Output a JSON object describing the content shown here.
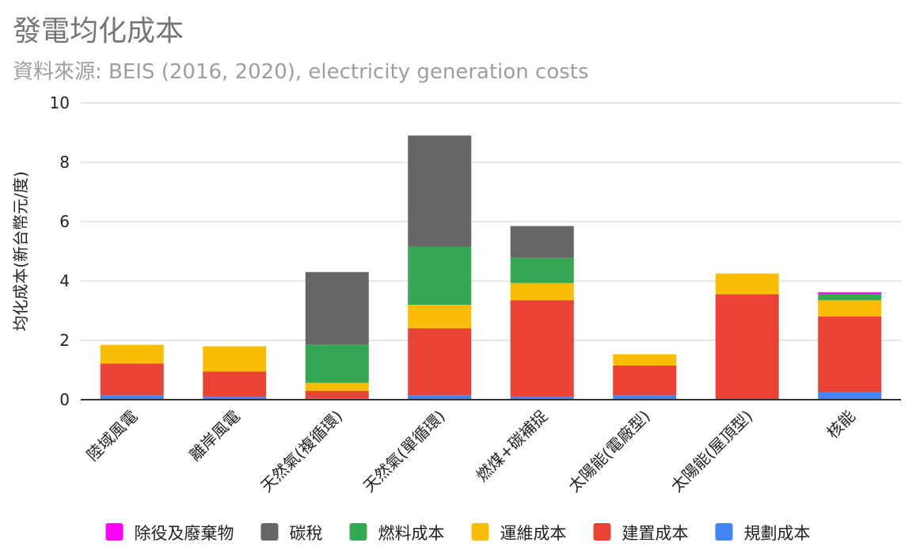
{
  "chart_data": {
    "type": "bar",
    "stacked": true,
    "title": "發電均化成本",
    "subtitle": "資料來源: BEIS (2016, 2020), electricity generation costs",
    "xlabel": "",
    "ylabel": "均化成本(新台幣元/度)",
    "ylim": [
      0,
      10
    ],
    "yticks": [
      "0",
      "2",
      "4",
      "6",
      "8",
      "10"
    ],
    "grid": true,
    "legend_position": "bottom",
    "categories": [
      "陸域風電",
      "離岸風電",
      "天然氣(複循環)",
      "天然氣(單循環)",
      "燃煤+碳補捉",
      "太陽能(電廠型)",
      "太陽能(屋頂型)",
      "核能"
    ],
    "series": [
      {
        "name": "規劃成本",
        "color": "#4285f4",
        "values": [
          0.15,
          0.1,
          0.05,
          0.15,
          0.1,
          0.15,
          0.0,
          0.25
        ]
      },
      {
        "name": "建置成本",
        "color": "#ea4335",
        "values": [
          1.07,
          0.85,
          0.25,
          2.25,
          3.25,
          1.0,
          3.55,
          2.55
        ]
      },
      {
        "name": "運維成本",
        "color": "#fbbc04",
        "values": [
          0.63,
          0.85,
          0.27,
          0.8,
          0.58,
          0.38,
          0.7,
          0.55
        ]
      },
      {
        "name": "燃料成本",
        "color": "#34a853",
        "values": [
          0.0,
          0.0,
          1.28,
          1.95,
          0.85,
          0.0,
          0.0,
          0.2
        ]
      },
      {
        "name": "碳稅",
        "color": "#666666",
        "values": [
          0.0,
          0.0,
          2.45,
          3.75,
          1.07,
          0.0,
          0.0,
          0.0
        ]
      },
      {
        "name": "除役及廢棄物",
        "color": "#ff00ff",
        "values": [
          0.0,
          0.0,
          0.0,
          0.0,
          0.0,
          0.0,
          0.0,
          0.07
        ]
      }
    ],
    "legend_order": [
      "除役及廢棄物",
      "碳稅",
      "燃料成本",
      "運維成本",
      "建置成本",
      "規劃成本"
    ]
  }
}
